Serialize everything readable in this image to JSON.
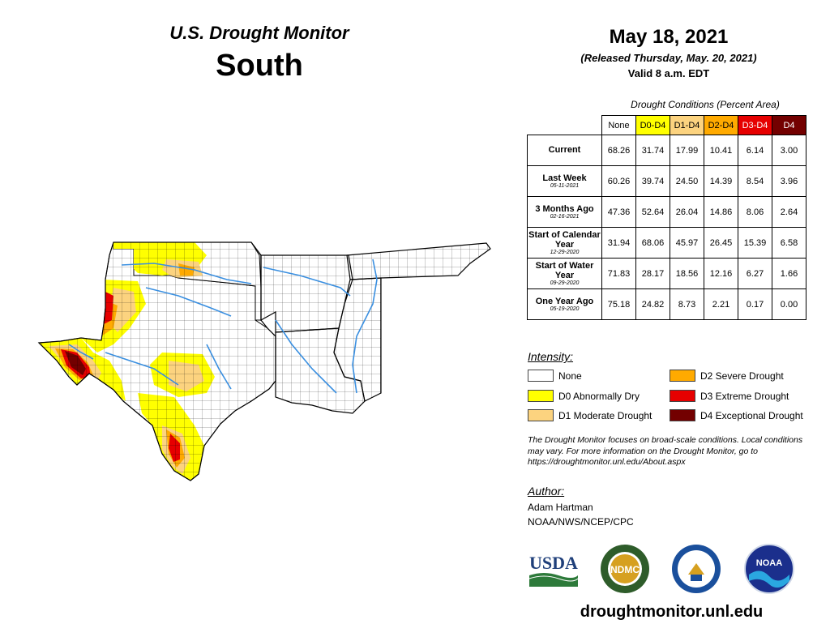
{
  "header": {
    "product": "U.S. Drought Monitor",
    "region": "South",
    "date": "May 18, 2021",
    "released": "(Released Thursday, May. 20, 2021)",
    "valid": "Valid 8 a.m. EDT"
  },
  "table": {
    "caption": "Drought Conditions (Percent Area)",
    "columns": [
      {
        "label": "None",
        "color": "#ffffff"
      },
      {
        "label": "D0-D4",
        "color": "#ffff00"
      },
      {
        "label": "D1-D4",
        "color": "#fcd37f"
      },
      {
        "label": "D2-D4",
        "color": "#ffaa00"
      },
      {
        "label": "D3-D4",
        "color": "#e60000"
      },
      {
        "label": "D4",
        "color": "#730000"
      }
    ],
    "rows": [
      {
        "label": "Current",
        "date": "",
        "values": [
          "68.26",
          "31.74",
          "17.99",
          "10.41",
          "6.14",
          "3.00"
        ]
      },
      {
        "label": "Last Week",
        "date": "05-11-2021",
        "values": [
          "60.26",
          "39.74",
          "24.50",
          "14.39",
          "8.54",
          "3.96"
        ]
      },
      {
        "label": "3 Months Ago",
        "date": "02-16-2021",
        "values": [
          "47.36",
          "52.64",
          "26.04",
          "14.86",
          "8.06",
          "2.64"
        ]
      },
      {
        "label": "Start of Calendar Year",
        "date": "12-29-2020",
        "values": [
          "31.94",
          "68.06",
          "45.97",
          "26.45",
          "15.39",
          "6.58"
        ]
      },
      {
        "label": "Start of Water Year",
        "date": "09-29-2020",
        "values": [
          "71.83",
          "28.17",
          "18.56",
          "12.16",
          "6.27",
          "1.66"
        ]
      },
      {
        "label": "One Year Ago",
        "date": "05-19-2020",
        "values": [
          "75.18",
          "24.82",
          "8.73",
          "2.21",
          "0.17",
          "0.00"
        ]
      }
    ]
  },
  "legend": {
    "title": "Intensity:",
    "items": [
      {
        "label": "None",
        "color": "#ffffff"
      },
      {
        "label": "D0 Abnormally Dry",
        "color": "#ffff00"
      },
      {
        "label": "D1 Moderate Drought",
        "color": "#fcd37f"
      },
      {
        "label": "D2 Severe Drought",
        "color": "#ffaa00"
      },
      {
        "label": "D3 Extreme Drought",
        "color": "#e60000"
      },
      {
        "label": "D4 Exceptional Drought",
        "color": "#730000"
      }
    ]
  },
  "note": "The Drought Monitor focuses on broad-scale conditions. Local conditions may vary. For more information on the Drought Monitor, go to https://droughtmonitor.unl.edu/About.aspx",
  "author": {
    "title": "Author:",
    "name": "Adam Hartman",
    "org": "NOAA/NWS/NCEP/CPC"
  },
  "logos": {
    "usda": "USDA",
    "ndmc": "NDMC",
    "noaa": "NOAA"
  },
  "footer_url": "droughtmonitor.unl.edu",
  "map": {
    "states": [
      "Oklahoma",
      "Texas",
      "Arkansas",
      "Louisiana",
      "Mississippi",
      "Tennessee"
    ],
    "colors": {
      "none": "#ffffff",
      "d0": "#ffff00",
      "d1": "#fcd37f",
      "d2": "#ffaa00",
      "d3": "#e60000",
      "d4": "#730000",
      "rivers": "#3a8fe0",
      "borders": "#000000"
    }
  }
}
